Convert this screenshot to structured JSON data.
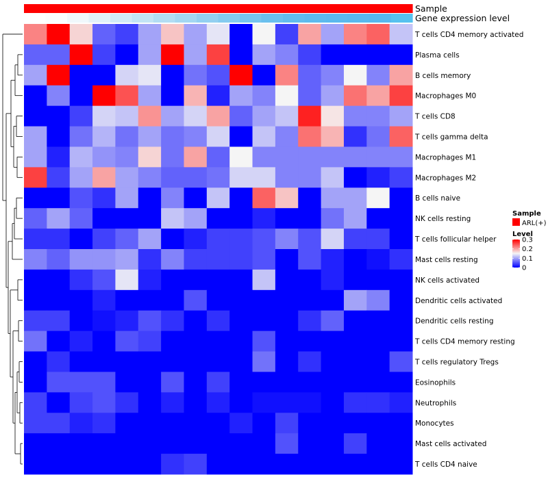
{
  "chart_data": {
    "type": "heatmap",
    "title": "",
    "annotations": [
      {
        "name": "Sample",
        "colors": [
          "#FF0000"
        ]
      },
      {
        "name": "Gene expression level",
        "colors": [
          "#ffffff",
          "#fbfdfe",
          "#f0f8fc",
          "#e1f2fa",
          "#d1eaf7",
          "#c2e4f5",
          "#b2ddf3",
          "#a3d7f2",
          "#93d0f1",
          "#84cbf0",
          "#76c5ef",
          "#6ac0ee",
          "#62bced",
          "#5dbaed",
          "#5bb9ed",
          "#59b8ed",
          "#57b7ed",
          "#56c2ef"
        ]
      }
    ],
    "rows": [
      "T cells CD4 memory activated",
      "Plasma cells",
      "B cells memory",
      "Macrophages M0",
      "T cells CD8",
      "T cells gamma delta",
      "Macrophages M1",
      "Macrophages M2",
      "B cells naive",
      "NK cells resting",
      "T cells follicular helper",
      "Mast cells resting",
      "NK cells activated",
      "Dendritic cells activated",
      "Dendritic cells resting",
      "T cells CD4 memory resting",
      "T cells regulatory  Tregs",
      "Eosinophils",
      "Neutrophils",
      "Monocytes",
      "Mast cells activated",
      "T cells CD4 naive"
    ],
    "values": [
      [
        0.22,
        0.3,
        0.17,
        0.06,
        0.04,
        0.1,
        0.18,
        0.1,
        0.14,
        0.0,
        0.15,
        0.04,
        0.2,
        0.1,
        0.22,
        0.24,
        0.12
      ],
      [
        0.06,
        0.06,
        0.3,
        0.04,
        0.0,
        0.1,
        0.3,
        0.1,
        0.26,
        0.0,
        0.1,
        0.08,
        0.04,
        0.0,
        0.0,
        0.0,
        0.0
      ],
      [
        0.1,
        0.3,
        0.0,
        0.0,
        0.13,
        0.14,
        0.0,
        0.07,
        0.05,
        0.3,
        0.0,
        0.22,
        0.06,
        0.08,
        0.15,
        0.08,
        0.2
      ],
      [
        0.0,
        0.08,
        0.0,
        0.3,
        0.25,
        0.1,
        0.0,
        0.19,
        0.02,
        0.1,
        0.08,
        0.15,
        0.06,
        0.1,
        0.23,
        0.2,
        0.26
      ],
      [
        0.0,
        0.0,
        0.04,
        0.13,
        0.12,
        0.21,
        0.1,
        0.13,
        0.2,
        0.06,
        0.1,
        0.12,
        0.28,
        0.16,
        0.08,
        0.08,
        0.1
      ],
      [
        0.1,
        0.0,
        0.07,
        0.11,
        0.07,
        0.1,
        0.07,
        0.08,
        0.13,
        0.0,
        0.12,
        0.08,
        0.23,
        0.19,
        0.03,
        0.07,
        0.24
      ],
      [
        0.1,
        0.02,
        0.11,
        0.09,
        0.08,
        0.17,
        0.07,
        0.2,
        0.06,
        0.15,
        0.08,
        0.08,
        0.08,
        0.08,
        0.08,
        0.08,
        0.08
      ],
      [
        0.26,
        0.04,
        0.1,
        0.2,
        0.1,
        0.08,
        0.06,
        0.06,
        0.07,
        0.13,
        0.13,
        0.08,
        0.08,
        0.12,
        0.0,
        0.02,
        0.04
      ],
      [
        0.0,
        0.0,
        0.05,
        0.03,
        0.1,
        0.0,
        0.08,
        0.0,
        0.12,
        0.0,
        0.24,
        0.18,
        0.0,
        0.1,
        0.1,
        0.15,
        0.0
      ],
      [
        0.06,
        0.1,
        0.06,
        0.0,
        0.0,
        0.0,
        0.12,
        0.1,
        0.0,
        0.0,
        0.02,
        0.0,
        0.0,
        0.07,
        0.1,
        0.0,
        0.0
      ],
      [
        0.03,
        0.03,
        0.0,
        0.04,
        0.06,
        0.1,
        0.0,
        0.02,
        0.04,
        0.04,
        0.05,
        0.08,
        0.05,
        0.13,
        0.04,
        0.04,
        0.0
      ],
      [
        0.08,
        0.06,
        0.09,
        0.09,
        0.1,
        0.03,
        0.08,
        0.04,
        0.04,
        0.04,
        0.05,
        0.0,
        0.05,
        0.02,
        0.0,
        0.01,
        0.03
      ],
      [
        0.0,
        0.0,
        0.03,
        0.05,
        0.14,
        0.02,
        0.0,
        0.0,
        0.0,
        0.0,
        0.12,
        0.0,
        0.0,
        0.02,
        0.0,
        0.0,
        0.0
      ],
      [
        0.0,
        0.0,
        0.0,
        0.02,
        0.0,
        0.0,
        0.0,
        0.05,
        0.0,
        0.0,
        0.0,
        0.0,
        0.0,
        0.0,
        0.1,
        0.08,
        0.0
      ],
      [
        0.04,
        0.04,
        0.0,
        0.01,
        0.02,
        0.05,
        0.03,
        0.0,
        0.03,
        0.0,
        0.0,
        0.0,
        0.03,
        0.06,
        0.0,
        0.0,
        0.0
      ],
      [
        0.07,
        0.0,
        0.02,
        0.0,
        0.05,
        0.04,
        0.0,
        0.0,
        0.0,
        0.0,
        0.05,
        0.0,
        0.0,
        0.0,
        0.0,
        0.0,
        0.0
      ],
      [
        0.0,
        0.03,
        0.0,
        0.0,
        0.0,
        0.0,
        0.0,
        0.0,
        0.0,
        0.0,
        0.07,
        0.0,
        0.03,
        0.0,
        0.0,
        0.0,
        0.05
      ],
      [
        0.0,
        0.05,
        0.05,
        0.05,
        0.0,
        0.0,
        0.05,
        0.0,
        0.04,
        0.0,
        0.0,
        0.0,
        0.0,
        0.0,
        0.0,
        0.0,
        0.0
      ],
      [
        0.04,
        0.0,
        0.04,
        0.05,
        0.03,
        0.0,
        0.02,
        0.0,
        0.02,
        0.0,
        0.01,
        0.01,
        0.01,
        0.0,
        0.03,
        0.03,
        0.02
      ],
      [
        0.04,
        0.04,
        0.02,
        0.03,
        0.0,
        0.0,
        0.0,
        0.0,
        0.0,
        0.02,
        0.0,
        0.04,
        0.0,
        0.0,
        0.0,
        0.0,
        0.0
      ],
      [
        0.0,
        0.0,
        0.0,
        0.0,
        0.0,
        0.0,
        0.0,
        0.0,
        0.0,
        0.0,
        0.0,
        0.05,
        0.0,
        0.0,
        0.04,
        0.0,
        0.0
      ],
      [
        0.0,
        0.0,
        0.0,
        0.0,
        0.0,
        0.0,
        0.03,
        0.04,
        0.0,
        0.0,
        0.0,
        0.0,
        0.0,
        0.0,
        0.0,
        0.0,
        0.0
      ]
    ],
    "color_scale": {
      "min": 0,
      "mid": 0.15,
      "max": 0.3,
      "low": "#0000FF",
      "midcolor": "#F5F5F5",
      "high": "#FF0000"
    },
    "legend": {
      "sample_title": "Sample",
      "sample_entry": "ARL(+)",
      "sample_color": "#FF0000",
      "level_title": "Level",
      "level_ticks": [
        0.3,
        0.2,
        0.1,
        0
      ]
    },
    "dendrogram": "row-clustering tree on left"
  }
}
